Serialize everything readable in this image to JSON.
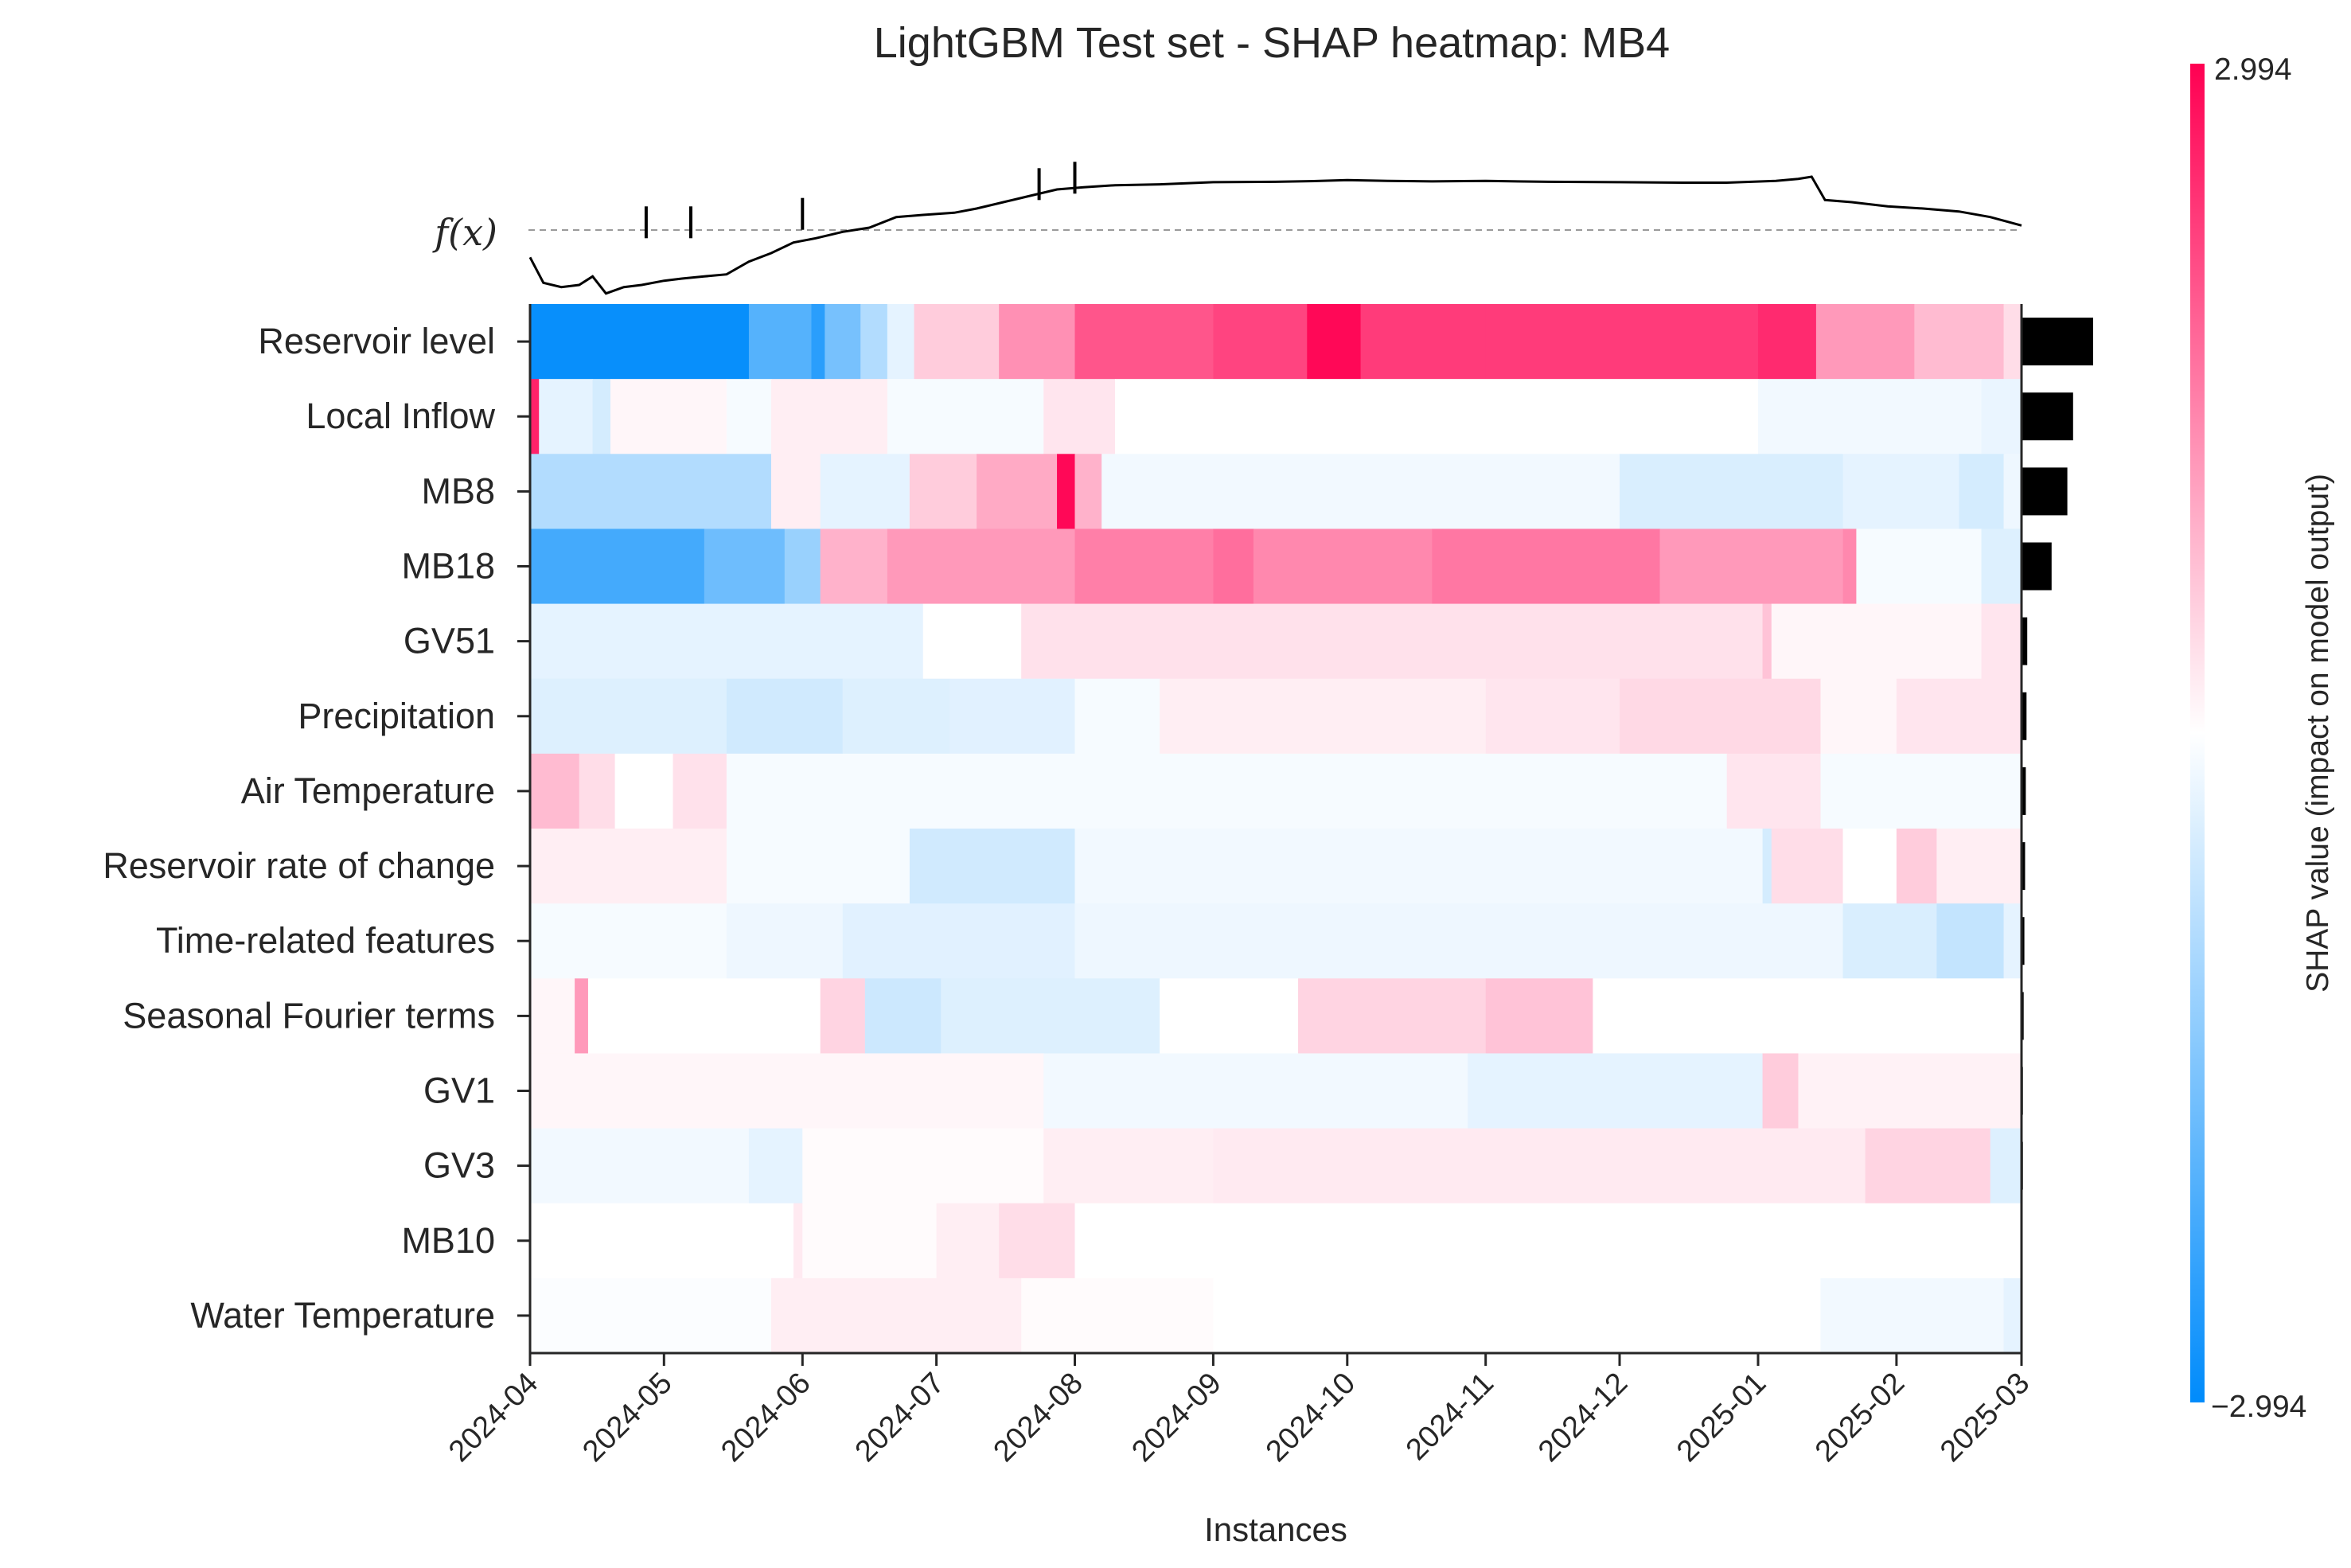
{
  "chart_data": {
    "type": "heatmap",
    "title": "LightGBM Test set - SHAP heatmap: MB4",
    "xlabel": "Instances",
    "fx_label": "f(x)",
    "x_ticks": [
      "2024-04",
      "2024-05",
      "2024-06",
      "2024-07",
      "2024-08",
      "2024-09",
      "2024-10",
      "2024-11",
      "2024-12",
      "2025-01",
      "2025-02",
      "2025-03"
    ],
    "x_range": [
      "2024-04-01",
      "2025-03-01"
    ],
    "colorbar": {
      "label": "SHAP value (impact on model output)",
      "max": 2.994,
      "min": -2.994,
      "max_label": "2.994",
      "min_label": "−2.994",
      "colors": {
        "negative": "#008bfb",
        "neutral": "#ffffff",
        "positive": "#ff0052"
      }
    },
    "fx_baseline": 0.0,
    "fx_series": [
      [
        "2024-04-01",
        -0.9
      ],
      [
        "2024-04-04",
        -1.5
      ],
      [
        "2024-04-08",
        -1.6
      ],
      [
        "2024-04-12",
        -1.55
      ],
      [
        "2024-04-15",
        -1.35
      ],
      [
        "2024-04-18",
        -1.75
      ],
      [
        "2024-04-22",
        -1.6
      ],
      [
        "2024-04-26",
        -1.55
      ],
      [
        "2024-05-01",
        -1.45
      ],
      [
        "2024-05-05",
        -1.4
      ],
      [
        "2024-05-10",
        -1.35
      ],
      [
        "2024-05-15",
        -1.3
      ],
      [
        "2024-05-20",
        -1.0
      ],
      [
        "2024-05-25",
        -0.8
      ],
      [
        "2024-05-30",
        -0.55
      ],
      [
        "2024-06-04",
        -0.45
      ],
      [
        "2024-06-10",
        -0.3
      ],
      [
        "2024-06-16",
        -0.2
      ],
      [
        "2024-06-22",
        0.05
      ],
      [
        "2024-06-28",
        0.1
      ],
      [
        "2024-07-05",
        0.15
      ],
      [
        "2024-07-10",
        0.25
      ],
      [
        "2024-07-16",
        0.4
      ],
      [
        "2024-07-22",
        0.55
      ],
      [
        "2024-07-28",
        0.7
      ],
      [
        "2024-08-03",
        0.75
      ],
      [
        "2024-08-10",
        0.8
      ],
      [
        "2024-08-20",
        0.82
      ],
      [
        "2024-09-01",
        0.87
      ],
      [
        "2024-09-15",
        0.88
      ],
      [
        "2024-09-25",
        0.9
      ],
      [
        "2024-10-01",
        0.92
      ],
      [
        "2024-10-10",
        0.9
      ],
      [
        "2024-10-20",
        0.89
      ],
      [
        "2024-11-01",
        0.9
      ],
      [
        "2024-11-15",
        0.88
      ],
      [
        "2024-12-01",
        0.87
      ],
      [
        "2024-12-15",
        0.86
      ],
      [
        "2024-12-25",
        0.86
      ],
      [
        "2025-01-05",
        0.9
      ],
      [
        "2025-01-10",
        0.95
      ],
      [
        "2025-01-13",
        1.0
      ],
      [
        "2025-01-16",
        0.45
      ],
      [
        "2025-01-22",
        0.4
      ],
      [
        "2025-01-30",
        0.3
      ],
      [
        "2025-02-07",
        0.25
      ],
      [
        "2025-02-15",
        0.18
      ],
      [
        "2025-02-22",
        0.05
      ],
      [
        "2025-03-01",
        -0.15
      ]
    ],
    "fx_spikes": [
      [
        "2024-04-27",
        0.3
      ],
      [
        "2024-05-07",
        0.3
      ],
      [
        "2024-06-01",
        0.5
      ],
      [
        "2024-07-24",
        1.2
      ],
      [
        "2024-08-01",
        1.35
      ]
    ],
    "fx_range": [
      -2.0,
      1.6
    ],
    "features": [
      {
        "name": "Reservoir level",
        "importance": 1.0,
        "segments": [
          [
            "2024-04-01",
            -2.9
          ],
          [
            "2024-05-20",
            -2.0
          ],
          [
            "2024-06-03",
            -2.5
          ],
          [
            "2024-06-06",
            -1.6
          ],
          [
            "2024-06-14",
            -0.9
          ],
          [
            "2024-06-20",
            -0.3
          ],
          [
            "2024-06-26",
            0.6
          ],
          [
            "2024-07-15",
            1.3
          ],
          [
            "2024-08-01",
            2.0
          ],
          [
            "2024-09-01",
            2.2
          ],
          [
            "2024-09-22",
            2.9
          ],
          [
            "2024-10-04",
            2.3
          ],
          [
            "2024-11-01",
            2.3
          ],
          [
            "2025-01-01",
            2.5
          ],
          [
            "2025-01-14",
            1.2
          ],
          [
            "2025-02-05",
            0.8
          ],
          [
            "2025-02-25",
            0.4
          ]
        ]
      },
      {
        "name": "Local Inflow",
        "importance": 0.72,
        "segments": [
          [
            "2024-04-01",
            2.6
          ],
          [
            "2024-04-03",
            -0.3
          ],
          [
            "2024-04-15",
            -0.5
          ],
          [
            "2024-04-19",
            0.1
          ],
          [
            "2024-05-15",
            -0.1
          ],
          [
            "2024-05-25",
            0.2
          ],
          [
            "2024-06-20",
            -0.1
          ],
          [
            "2024-07-25",
            0.3
          ],
          [
            "2024-08-10",
            0.0
          ],
          [
            "2025-01-01",
            -0.15
          ],
          [
            "2025-02-20",
            -0.25
          ]
        ]
      },
      {
        "name": "MB8",
        "importance": 0.64,
        "segments": [
          [
            "2024-04-01",
            -0.9
          ],
          [
            "2024-05-25",
            0.2
          ],
          [
            "2024-06-05",
            -0.3
          ],
          [
            "2024-06-25",
            0.6
          ],
          [
            "2024-07-10",
            1.0
          ],
          [
            "2024-07-28",
            2.9
          ],
          [
            "2024-08-01",
            0.9
          ],
          [
            "2024-08-07",
            -0.15
          ],
          [
            "2024-12-01",
            -0.45
          ],
          [
            "2025-01-20",
            -0.3
          ],
          [
            "2025-02-15",
            -0.5
          ],
          [
            "2025-02-25",
            -0.2
          ]
        ]
      },
      {
        "name": "MB18",
        "importance": 0.42,
        "segments": [
          [
            "2024-04-01",
            -2.2
          ],
          [
            "2024-05-10",
            -1.7
          ],
          [
            "2024-05-28",
            -1.2
          ],
          [
            "2024-06-05",
            0.9
          ],
          [
            "2024-06-20",
            1.2
          ],
          [
            "2024-08-01",
            1.5
          ],
          [
            "2024-09-01",
            1.7
          ],
          [
            "2024-09-10",
            1.4
          ],
          [
            "2024-10-20",
            1.6
          ],
          [
            "2024-12-10",
            1.2
          ],
          [
            "2025-01-20",
            1.4
          ],
          [
            "2025-01-23",
            -0.1
          ],
          [
            "2025-02-20",
            -0.4
          ]
        ]
      },
      {
        "name": "GV51",
        "importance": 0.08,
        "segments": [
          [
            "2024-04-01",
            -0.3
          ],
          [
            "2024-06-28",
            0.0
          ],
          [
            "2024-07-20",
            0.35
          ],
          [
            "2025-01-02",
            0.7
          ],
          [
            "2025-01-04",
            0.1
          ],
          [
            "2025-02-20",
            0.3
          ]
        ]
      },
      {
        "name": "Precipitation",
        "importance": 0.07,
        "segments": [
          [
            "2024-04-01",
            -0.4
          ],
          [
            "2024-05-15",
            -0.55
          ],
          [
            "2024-06-10",
            -0.4
          ],
          [
            "2024-07-04",
            -0.35
          ],
          [
            "2024-08-01",
            -0.1
          ],
          [
            "2024-08-20",
            0.2
          ],
          [
            "2024-11-01",
            0.3
          ],
          [
            "2024-12-01",
            0.45
          ],
          [
            "2025-01-15",
            0.1
          ],
          [
            "2025-02-01",
            0.3
          ]
        ]
      },
      {
        "name": "Air Temperature",
        "importance": 0.06,
        "segments": [
          [
            "2024-04-01",
            0.8
          ],
          [
            "2024-04-12",
            0.4
          ],
          [
            "2024-04-20",
            0.0
          ],
          [
            "2024-05-03",
            0.35
          ],
          [
            "2024-05-15",
            -0.1
          ],
          [
            "2024-12-25",
            0.3
          ],
          [
            "2025-01-15",
            -0.1
          ]
        ]
      },
      {
        "name": "Reservoir rate of change",
        "importance": 0.05,
        "segments": [
          [
            "2024-04-01",
            0.2
          ],
          [
            "2024-05-15",
            -0.1
          ],
          [
            "2024-06-25",
            -0.55
          ],
          [
            "2024-08-01",
            -0.15
          ],
          [
            "2025-01-02",
            -0.5
          ],
          [
            "2025-01-04",
            0.4
          ],
          [
            "2025-01-20",
            0.0
          ],
          [
            "2025-02-01",
            0.6
          ],
          [
            "2025-02-10",
            0.2
          ]
        ]
      },
      {
        "name": "Time-related features",
        "importance": 0.04,
        "segments": [
          [
            "2024-04-01",
            -0.1
          ],
          [
            "2024-05-15",
            -0.2
          ],
          [
            "2024-06-10",
            -0.35
          ],
          [
            "2024-08-01",
            -0.2
          ],
          [
            "2025-01-20",
            -0.45
          ],
          [
            "2025-02-10",
            -0.7
          ],
          [
            "2025-02-25",
            -0.3
          ]
        ]
      },
      {
        "name": "Seasonal Fourier terms",
        "importance": 0.03,
        "segments": [
          [
            "2024-04-01",
            0.1
          ],
          [
            "2024-04-11",
            1.2
          ],
          [
            "2024-04-14",
            0.0
          ],
          [
            "2024-06-05",
            0.5
          ],
          [
            "2024-06-15",
            -0.6
          ],
          [
            "2024-07-02",
            -0.4
          ],
          [
            "2024-08-20",
            0.0
          ],
          [
            "2024-09-20",
            0.5
          ],
          [
            "2024-11-01",
            0.7
          ],
          [
            "2024-11-25",
            0.0
          ]
        ]
      },
      {
        "name": "GV1",
        "importance": 0.02,
        "segments": [
          [
            "2024-04-01",
            0.1
          ],
          [
            "2024-07-25",
            -0.15
          ],
          [
            "2024-10-28",
            -0.3
          ],
          [
            "2025-01-02",
            0.6
          ],
          [
            "2025-01-10",
            0.15
          ]
        ]
      },
      {
        "name": "GV3",
        "importance": 0.02,
        "segments": [
          [
            "2024-04-01",
            -0.15
          ],
          [
            "2024-05-20",
            -0.3
          ],
          [
            "2024-06-01",
            0.05
          ],
          [
            "2024-07-25",
            0.2
          ],
          [
            "2024-09-01",
            0.25
          ],
          [
            "2025-01-25",
            0.5
          ],
          [
            "2025-02-22",
            -0.4
          ]
        ]
      },
      {
        "name": "MB10",
        "importance": 0.01,
        "segments": [
          [
            "2024-04-01",
            0.0
          ],
          [
            "2024-05-30",
            0.25
          ],
          [
            "2024-06-01",
            0.05
          ],
          [
            "2024-07-01",
            0.2
          ],
          [
            "2024-07-15",
            0.4
          ],
          [
            "2024-08-01",
            0.0
          ]
        ]
      },
      {
        "name": "Water Temperature",
        "importance": 0.01,
        "segments": [
          [
            "2024-04-01",
            -0.05
          ],
          [
            "2024-05-25",
            0.2
          ],
          [
            "2024-07-20",
            0.05
          ],
          [
            "2024-09-01",
            0.0
          ],
          [
            "2025-01-15",
            -0.15
          ],
          [
            "2025-02-25",
            -0.3
          ]
        ]
      }
    ]
  }
}
